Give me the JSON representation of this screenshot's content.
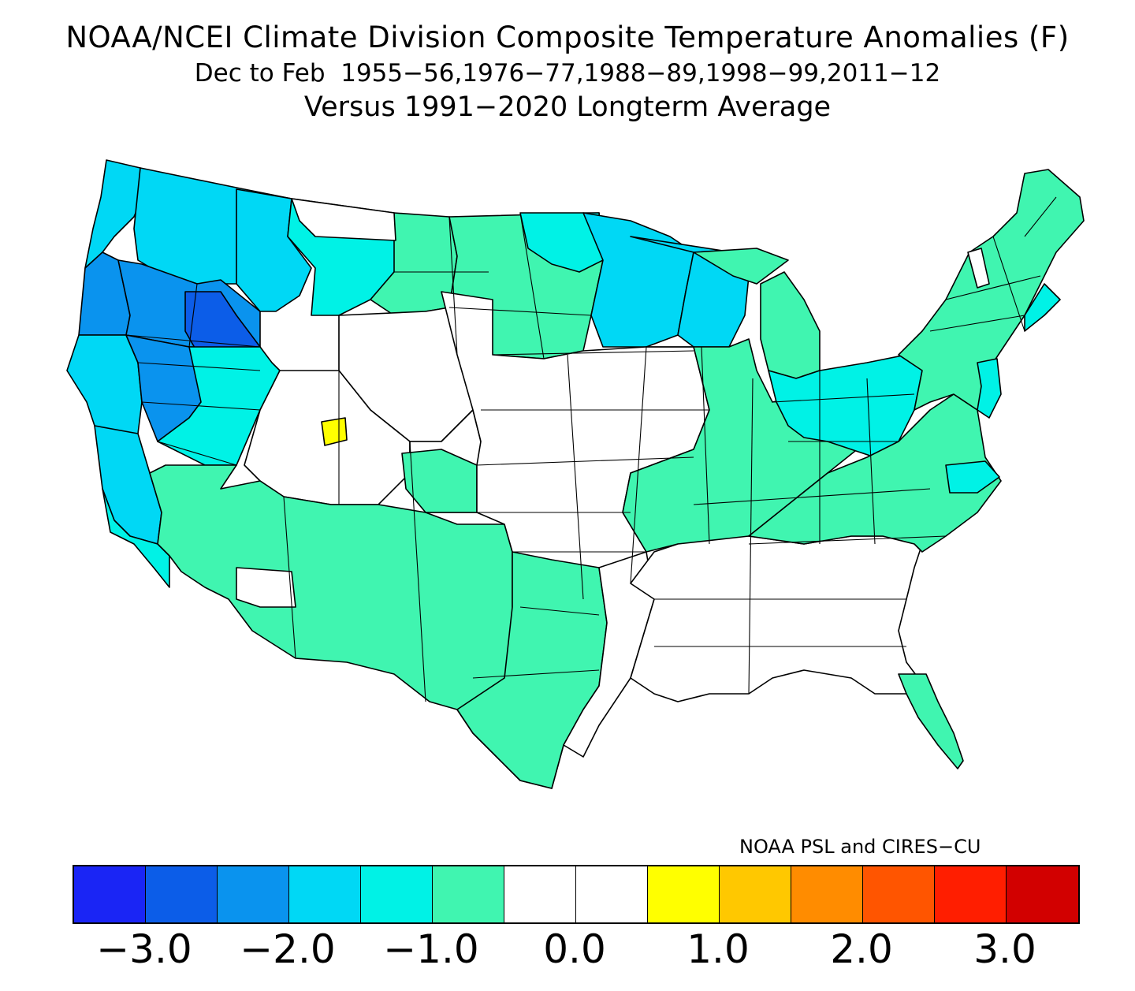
{
  "header": {
    "title": "NOAA/NCEI Climate Division Composite Temperature Anomalies (F)",
    "subtitle": "Dec to Feb  1955−56,1976−77,1988−89,1998−99,2011−12",
    "baseline": "Versus 1991−2020 Longterm Average"
  },
  "credit": "NOAA PSL and CIRES−CU",
  "colors": {
    "c_m3": "#1a25f5",
    "c_m25": "#0c5de8",
    "c_m2": "#0a93ee",
    "c_m15": "#00d8f5",
    "c_m1": "#00f2e6",
    "c_m05": "#40f5b0",
    "c_0": "#ffffff",
    "c_p05": "#ffff00",
    "c_p1": "#ffc800",
    "c_p15": "#ff8c00",
    "c_p2": "#ff5500",
    "c_p25": "#ff1e00",
    "c_p3": "#d20000"
  },
  "legend": {
    "swatches": [
      "#1a25f5",
      "#0c5de8",
      "#0a93ee",
      "#00d8f5",
      "#00f2e6",
      "#40f5b0",
      "#ffffff",
      "#ffffff",
      "#ffff00",
      "#ffc800",
      "#ff8c00",
      "#ff5500",
      "#ff1e00",
      "#d20000"
    ],
    "ticks": [
      {
        "label": "−3.0",
        "idx": 1
      },
      {
        "label": "−2.0",
        "idx": 3
      },
      {
        "label": "−1.0",
        "idx": 5
      },
      {
        "label": "0.0",
        "idx": 7
      },
      {
        "label": "1.0",
        "idx": 9
      },
      {
        "label": "2.0",
        "idx": 11
      },
      {
        "label": "3.0",
        "idx": 13
      }
    ]
  },
  "regions": [
    {
      "name": "washington-coast",
      "color": "#00d8f5"
    },
    {
      "name": "washington-interior",
      "color": "#00d8f5"
    },
    {
      "name": "oregon-coast",
      "color": "#0a93ee"
    },
    {
      "name": "oregon-interior",
      "color": "#0a93ee"
    },
    {
      "name": "idaho-central",
      "color": "#0c5de8"
    },
    {
      "name": "northern-california",
      "color": "#00d8f5"
    },
    {
      "name": "california-central-valley",
      "color": "#00d8f5"
    },
    {
      "name": "southern-california-coast",
      "color": "#00f2e6"
    },
    {
      "name": "nevada-north",
      "color": "#0a93ee"
    },
    {
      "name": "nevada-central",
      "color": "#00f2e6"
    },
    {
      "name": "idaho-north",
      "color": "#00d8f5"
    },
    {
      "name": "montana-west",
      "color": "#00f2e6"
    },
    {
      "name": "montana-east",
      "color": "#40f5b0"
    },
    {
      "name": "montana-north",
      "color": "#ffffff"
    },
    {
      "name": "wyoming",
      "color": "#ffffff"
    },
    {
      "name": "utah-west",
      "color": "#ffffff"
    },
    {
      "name": "utah-north-anomaly",
      "color": "#ffff00"
    },
    {
      "name": "southwest",
      "color": "#40f5b0"
    },
    {
      "name": "arizona-southwest",
      "color": "#ffffff"
    },
    {
      "name": "colorado-west",
      "color": "#ffffff"
    },
    {
      "name": "colorado-south",
      "color": "#40f5b0"
    },
    {
      "name": "dakotas",
      "color": "#40f5b0"
    },
    {
      "name": "north-dakota-northeast",
      "color": "#00f2e6"
    },
    {
      "name": "minnesota",
      "color": "#00d8f5"
    },
    {
      "name": "wisconsin",
      "color": "#00d8f5"
    },
    {
      "name": "central-plains",
      "color": "#ffffff"
    },
    {
      "name": "texas",
      "color": "#40f5b0"
    },
    {
      "name": "texas-east",
      "color": "#ffffff"
    },
    {
      "name": "midwest",
      "color": "#40f5b0"
    },
    {
      "name": "michigan-upper",
      "color": "#40f5b0"
    },
    {
      "name": "michigan-lower",
      "color": "#40f5b0"
    },
    {
      "name": "ohio-valley",
      "color": "#00f2e6"
    },
    {
      "name": "south",
      "color": "#ffffff"
    },
    {
      "name": "florida",
      "color": "#40f5b0"
    },
    {
      "name": "mid-atlantic-carolinas",
      "color": "#40f5b0"
    },
    {
      "name": "virginia-coast",
      "color": "#00f2e6"
    },
    {
      "name": "northeast",
      "color": "#40f5b0"
    },
    {
      "name": "new-england-coast",
      "color": "#00f2e6"
    },
    {
      "name": "new-jersey",
      "color": "#00f2e6"
    },
    {
      "name": "vermont-sliver",
      "color": "#ffffff"
    }
  ]
}
